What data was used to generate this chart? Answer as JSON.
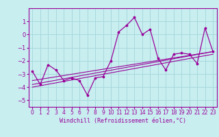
{
  "xlabel": "Windchill (Refroidissement éolien,°C)",
  "background_color": "#c8eef0",
  "grid_color": "#a8d8dc",
  "line_color": "#990099",
  "xlim": [
    -0.5,
    23.5
  ],
  "ylim": [
    -5.5,
    2.0
  ],
  "xticks": [
    0,
    1,
    2,
    3,
    4,
    5,
    6,
    7,
    8,
    9,
    10,
    11,
    12,
    13,
    14,
    15,
    16,
    17,
    18,
    19,
    20,
    21,
    22,
    23
  ],
  "yticks": [
    -5,
    -4,
    -3,
    -2,
    -1,
    0,
    1
  ],
  "main_x": [
    0,
    1,
    2,
    3,
    4,
    5,
    6,
    7,
    8,
    9,
    10,
    11,
    12,
    13,
    14,
    15,
    16,
    17,
    18,
    19,
    20,
    21,
    22,
    23
  ],
  "main_y": [
    -2.8,
    -3.8,
    -2.3,
    -2.7,
    -3.5,
    -3.3,
    -3.5,
    -4.6,
    -3.3,
    -3.2,
    -2.0,
    0.2,
    0.7,
    1.3,
    0.0,
    0.4,
    -1.8,
    -2.7,
    -1.5,
    -1.4,
    -1.5,
    -2.2,
    0.5,
    -1.3
  ],
  "line1_x": [
    0,
    23
  ],
  "line1_y": [
    -3.5,
    -1.3
  ],
  "line2_x": [
    0,
    23
  ],
  "line2_y": [
    -3.8,
    -1.3
  ],
  "line3_x": [
    0,
    23
  ],
  "line3_y": [
    -4.0,
    -1.5
  ]
}
